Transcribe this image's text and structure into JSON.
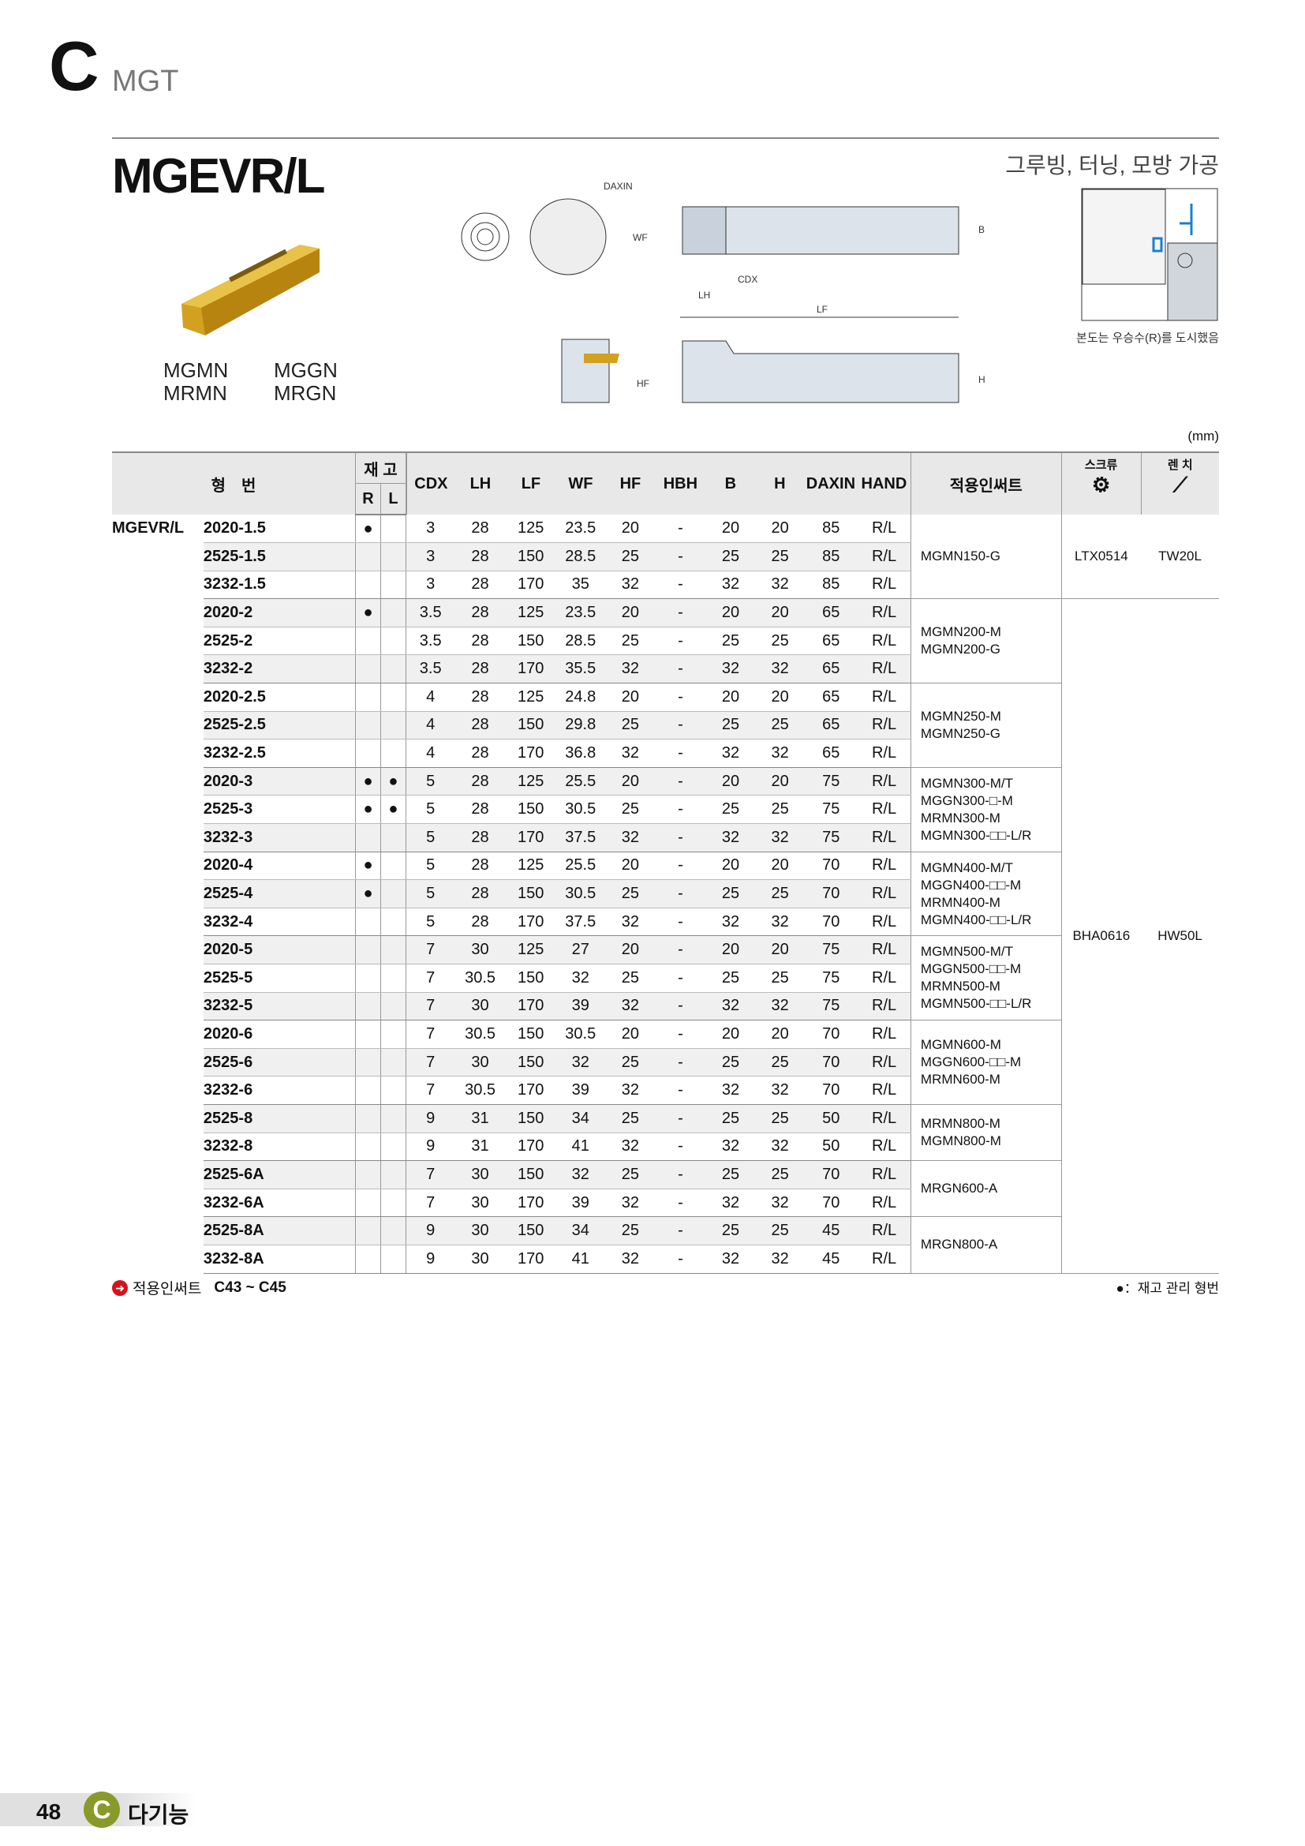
{
  "chapter": {
    "letter": "C",
    "name": "MGT"
  },
  "product": {
    "title": "MGEVR/L",
    "subtitle": "그루빙, 터닝, 모방 가공",
    "insert_labels": [
      [
        "MGMN",
        "MRMN"
      ],
      [
        "MGGN",
        "MRGN"
      ]
    ]
  },
  "diagram": {
    "labels": {
      "daxin": "DAXIN",
      "wf": "WF",
      "b": "B",
      "cdx": "CDX",
      "lh": "LH",
      "lf": "LF",
      "hf": "HF",
      "h": "H"
    },
    "note": "본도는 우승수(R)를 도시했음"
  },
  "unit": "(mm)",
  "table": {
    "headers": {
      "model": "형　번",
      "stock": "재 고",
      "r": "R",
      "l": "L",
      "cols": [
        "CDX",
        "LH",
        "LF",
        "WF",
        "HF",
        "HBH",
        "B",
        "H",
        "DAXIN",
        "HAND"
      ],
      "insert": "적용인써트",
      "screw": "스크류",
      "wrench": "렌 치"
    },
    "prefix": "MGEVR/L",
    "rows": [
      [
        "2020-1.5",
        "●",
        "",
        "3",
        "28",
        "125",
        "23.5",
        "20",
        "-",
        "20",
        "20",
        "85",
        "R/L"
      ],
      [
        "2525-1.5",
        "",
        "",
        "3",
        "28",
        "150",
        "28.5",
        "25",
        "-",
        "25",
        "25",
        "85",
        "R/L"
      ],
      [
        "3232-1.5",
        "",
        "",
        "3",
        "28",
        "170",
        "35",
        "32",
        "-",
        "32",
        "32",
        "85",
        "R/L"
      ],
      [
        "2020-2",
        "●",
        "",
        "3.5",
        "28",
        "125",
        "23.5",
        "20",
        "-",
        "20",
        "20",
        "65",
        "R/L"
      ],
      [
        "2525-2",
        "",
        "",
        "3.5",
        "28",
        "150",
        "28.5",
        "25",
        "-",
        "25",
        "25",
        "65",
        "R/L"
      ],
      [
        "3232-2",
        "",
        "",
        "3.5",
        "28",
        "170",
        "35.5",
        "32",
        "-",
        "32",
        "32",
        "65",
        "R/L"
      ],
      [
        "2020-2.5",
        "",
        "",
        "4",
        "28",
        "125",
        "24.8",
        "20",
        "-",
        "20",
        "20",
        "65",
        "R/L"
      ],
      [
        "2525-2.5",
        "",
        "",
        "4",
        "28",
        "150",
        "29.8",
        "25",
        "-",
        "25",
        "25",
        "65",
        "R/L"
      ],
      [
        "3232-2.5",
        "",
        "",
        "4",
        "28",
        "170",
        "36.8",
        "32",
        "-",
        "32",
        "32",
        "65",
        "R/L"
      ],
      [
        "2020-3",
        "●",
        "●",
        "5",
        "28",
        "125",
        "25.5",
        "20",
        "-",
        "20",
        "20",
        "75",
        "R/L"
      ],
      [
        "2525-3",
        "●",
        "●",
        "5",
        "28",
        "150",
        "30.5",
        "25",
        "-",
        "25",
        "25",
        "75",
        "R/L"
      ],
      [
        "3232-3",
        "",
        "",
        "5",
        "28",
        "170",
        "37.5",
        "32",
        "-",
        "32",
        "32",
        "75",
        "R/L"
      ],
      [
        "2020-4",
        "●",
        "",
        "5",
        "28",
        "125",
        "25.5",
        "20",
        "-",
        "20",
        "20",
        "70",
        "R/L"
      ],
      [
        "2525-4",
        "●",
        "",
        "5",
        "28",
        "150",
        "30.5",
        "25",
        "-",
        "25",
        "25",
        "70",
        "R/L"
      ],
      [
        "3232-4",
        "",
        "",
        "5",
        "28",
        "170",
        "37.5",
        "32",
        "-",
        "32",
        "32",
        "70",
        "R/L"
      ],
      [
        "2020-5",
        "",
        "",
        "7",
        "30",
        "125",
        "27",
        "20",
        "-",
        "20",
        "20",
        "75",
        "R/L"
      ],
      [
        "2525-5",
        "",
        "",
        "7",
        "30.5",
        "150",
        "32",
        "25",
        "-",
        "25",
        "25",
        "75",
        "R/L"
      ],
      [
        "3232-5",
        "",
        "",
        "7",
        "30",
        "170",
        "39",
        "32",
        "-",
        "32",
        "32",
        "75",
        "R/L"
      ],
      [
        "2020-6",
        "",
        "",
        "7",
        "30.5",
        "150",
        "30.5",
        "20",
        "-",
        "20",
        "20",
        "70",
        "R/L"
      ],
      [
        "2525-6",
        "",
        "",
        "7",
        "30",
        "150",
        "32",
        "25",
        "-",
        "25",
        "25",
        "70",
        "R/L"
      ],
      [
        "3232-6",
        "",
        "",
        "7",
        "30.5",
        "170",
        "39",
        "32",
        "-",
        "32",
        "32",
        "70",
        "R/L"
      ],
      [
        "2525-8",
        "",
        "",
        "9",
        "31",
        "150",
        "34",
        "25",
        "-",
        "25",
        "25",
        "50",
        "R/L"
      ],
      [
        "3232-8",
        "",
        "",
        "9",
        "31",
        "170",
        "41",
        "32",
        "-",
        "32",
        "32",
        "50",
        "R/L"
      ],
      [
        "2525-6A",
        "",
        "",
        "7",
        "30",
        "150",
        "32",
        "25",
        "-",
        "25",
        "25",
        "70",
        "R/L"
      ],
      [
        "3232-6A",
        "",
        "",
        "7",
        "30",
        "170",
        "39",
        "32",
        "-",
        "32",
        "32",
        "70",
        "R/L"
      ],
      [
        "2525-8A",
        "",
        "",
        "9",
        "30",
        "150",
        "34",
        "25",
        "-",
        "25",
        "25",
        "45",
        "R/L"
      ],
      [
        "3232-8A",
        "",
        "",
        "9",
        "30",
        "170",
        "41",
        "32",
        "-",
        "32",
        "32",
        "45",
        "R/L"
      ]
    ],
    "insert_groups": [
      {
        "start": 0,
        "span": 3,
        "lines": [
          "MGMN150-G"
        ]
      },
      {
        "start": 3,
        "span": 3,
        "lines": [
          "MGMN200-M",
          "MGMN200-G"
        ]
      },
      {
        "start": 6,
        "span": 3,
        "lines": [
          "MGMN250-M",
          "MGMN250-G"
        ]
      },
      {
        "start": 9,
        "span": 3,
        "lines": [
          "MGMN300-M/T",
          "MGGN300-□-M",
          "MRMN300-M",
          "MGMN300-□□-L/R"
        ]
      },
      {
        "start": 12,
        "span": 3,
        "lines": [
          "MGMN400-M/T",
          "MGGN400-□□-M",
          "MRMN400-M",
          "MGMN400-□□-L/R"
        ]
      },
      {
        "start": 15,
        "span": 3,
        "lines": [
          "MGMN500-M/T",
          "MGGN500-□□-M",
          "MRMN500-M",
          "MGMN500-□□-L/R"
        ]
      },
      {
        "start": 18,
        "span": 3,
        "lines": [
          "MGMN600-M",
          "MGGN600-□□-M",
          "MRMN600-M"
        ]
      },
      {
        "start": 21,
        "span": 2,
        "lines": [
          "MRMN800-M",
          "MGMN800-M"
        ]
      },
      {
        "start": 23,
        "span": 2,
        "lines": [
          "MRGN600-A"
        ]
      },
      {
        "start": 25,
        "span": 2,
        "lines": [
          "MRGN800-A"
        ]
      }
    ],
    "tool_groups": [
      {
        "start": 0,
        "span": 3,
        "screw": "LTX0514",
        "wrench": "TW20L"
      },
      {
        "start": 3,
        "span": 24,
        "screw": "BHA0616",
        "wrench": "HW50L"
      }
    ]
  },
  "footer": {
    "insert_ref_label": "적용인써트",
    "insert_ref_pages": "C43 ~ C45",
    "legend": "●：재고 관리 형번"
  },
  "page": {
    "number": "48",
    "section_letter": "C",
    "section": "다기능"
  },
  "colors": {
    "section": "#8a9a2a",
    "insert": "#d4a020",
    "arrow": "#d8121a",
    "accent_blue": "#1a7fd0"
  }
}
